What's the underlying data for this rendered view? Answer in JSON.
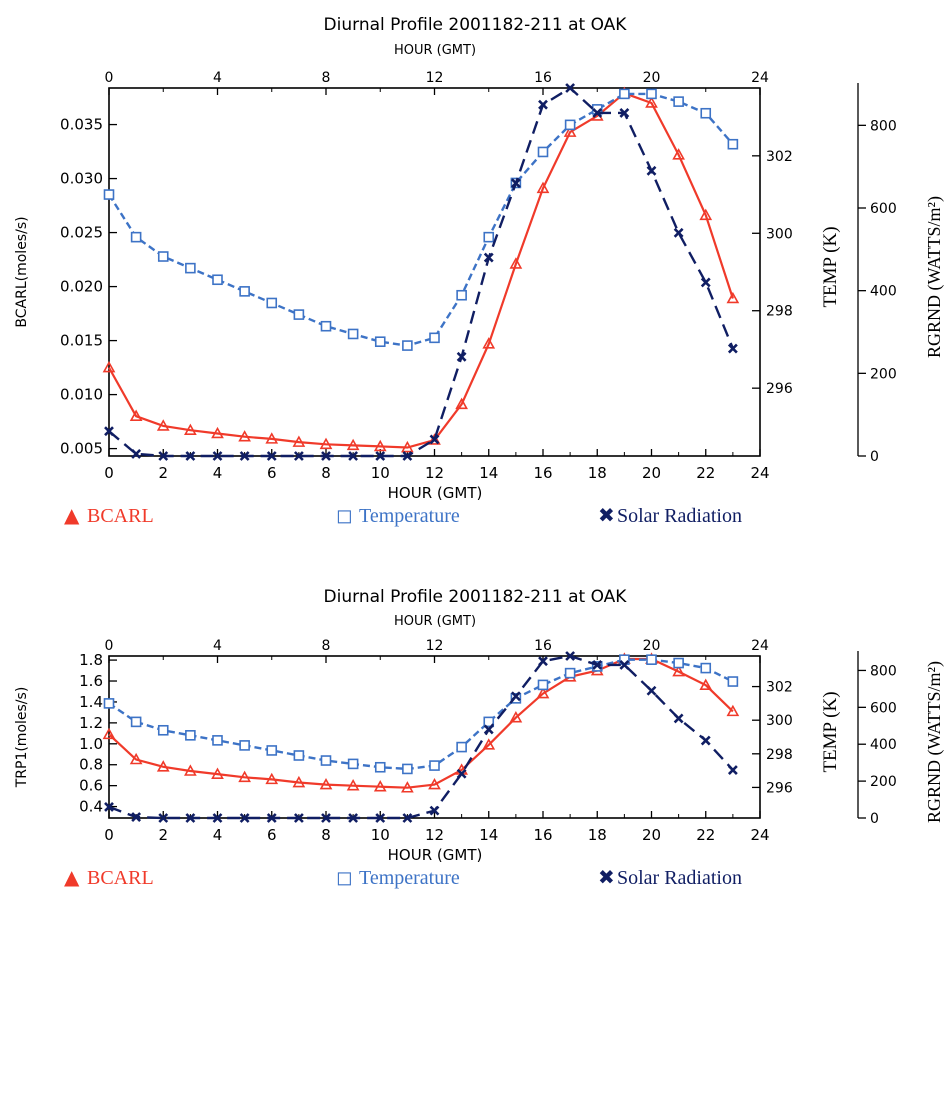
{
  "colors": {
    "bcarl": "#f03a2a",
    "temperature": "#3d73c6",
    "solar": "#101e63",
    "axis": "#000000"
  },
  "chart_data": [
    {
      "type": "line",
      "title": "Diurnal Profile 2001182-211 at OAK",
      "xlabel": "HOUR (GMT)",
      "top_xlabel": "HOUR (GMT)",
      "ylabel": "BCARL(moles/s)",
      "y2label": "TEMP (K)",
      "y3label": "RGRND (WATTS/m²)",
      "xlim": [
        0,
        24
      ],
      "ylim": [
        0.0045,
        0.0382
      ],
      "y2lim": [
        294.3,
        303.7
      ],
      "y3lim": [
        0,
        900
      ],
      "xticks_bottom": [
        "0",
        "2",
        "4",
        "6",
        "8",
        "10",
        "12",
        "14",
        "16",
        "18",
        "20",
        "22",
        "24"
      ],
      "xticks_top": [
        "0",
        "4",
        "8",
        "12",
        "16",
        "20",
        "24"
      ],
      "yticks": [
        "0.005",
        "0.010",
        "0.015",
        "0.020",
        "0.025",
        "0.030",
        "0.035"
      ],
      "y2ticks": [
        "296",
        "298",
        "300",
        "302"
      ],
      "y3ticks": [
        "0",
        "200",
        "400",
        "600",
        "800"
      ],
      "legend": [
        {
          "symbol": "▲",
          "label": "BCARL",
          "key": "bcarl"
        },
        {
          "symbol": "◻",
          "label": "Temperature",
          "key": "temperature"
        },
        {
          "symbol": "✖",
          "label": "Solar Radiation",
          "key": "solar"
        }
      ],
      "x": [
        0,
        1,
        2,
        3,
        4,
        5,
        6,
        7,
        8,
        9,
        10,
        11,
        12,
        13,
        14,
        15,
        16,
        17,
        18,
        19,
        20,
        21,
        22,
        23
      ],
      "series": [
        {
          "name": "BCARL",
          "axis": "left",
          "key": "bcarl",
          "values": [
            0.0125,
            0.008,
            0.0071,
            0.0067,
            0.0064,
            0.0061,
            0.0059,
            0.0056,
            0.0054,
            0.0053,
            0.0052,
            0.0051,
            0.0058,
            0.0091,
            0.0147,
            0.0221,
            0.0291,
            0.0343,
            0.0358,
            0.0379,
            0.037,
            0.0322,
            0.0266,
            0.0189
          ]
        },
        {
          "name": "Temperature",
          "axis": "right",
          "key": "temperature",
          "values": [
            301.0,
            299.9,
            299.4,
            299.1,
            298.8,
            298.5,
            298.2,
            297.9,
            297.6,
            297.4,
            297.2,
            297.1,
            297.3,
            298.4,
            299.9,
            301.3,
            302.1,
            302.8,
            303.2,
            303.6,
            303.6,
            303.4,
            303.1,
            302.3
          ]
        },
        {
          "name": "Solar Radiation",
          "axis": "radiation",
          "key": "solar",
          "values": [
            60,
            5,
            0,
            0,
            0,
            0,
            0,
            0,
            0,
            0,
            0,
            0,
            40,
            240,
            480,
            660,
            850,
            900,
            830,
            830,
            690,
            540,
            420,
            260
          ]
        }
      ]
    },
    {
      "type": "line",
      "title": "Diurnal Profile 2001182-211 at OAK",
      "xlabel": "HOUR (GMT)",
      "top_xlabel": "HOUR (GMT)",
      "ylabel": "TRP1(moles/s)",
      "y2label": "TEMP (K)",
      "y3label": "RGRND (WATTS/m²)",
      "xlim": [
        0,
        24
      ],
      "ylim": [
        0.31,
        1.82
      ],
      "y2lim": [
        294.3,
        303.7
      ],
      "y3lim": [
        0,
        900
      ],
      "xticks_bottom": [
        "0",
        "2",
        "4",
        "6",
        "8",
        "10",
        "12",
        "14",
        "16",
        "18",
        "20",
        "22",
        "24"
      ],
      "xticks_top": [
        "0",
        "4",
        "8",
        "12",
        "16",
        "20",
        "24"
      ],
      "yticks": [
        "0.4",
        "0.6",
        "0.8",
        "1.0",
        "1.2",
        "1.4",
        "1.6",
        "1.8"
      ],
      "y2ticks": [
        "296",
        "298",
        "300",
        "302"
      ],
      "y3ticks": [
        "0",
        "200",
        "400",
        "600",
        "800"
      ],
      "legend": [
        {
          "symbol": "▲",
          "label": "BCARL",
          "key": "bcarl"
        },
        {
          "symbol": "◻",
          "label": "Temperature",
          "key": "temperature"
        },
        {
          "symbol": "✖",
          "label": "Solar Radiation",
          "key": "solar"
        }
      ],
      "x": [
        0,
        1,
        2,
        3,
        4,
        5,
        6,
        7,
        8,
        9,
        10,
        11,
        12,
        13,
        14,
        15,
        16,
        17,
        18,
        19,
        20,
        21,
        22,
        23
      ],
      "series": [
        {
          "name": "BCARL",
          "axis": "left",
          "key": "bcarl",
          "values": [
            1.09,
            0.85,
            0.78,
            0.74,
            0.71,
            0.68,
            0.66,
            0.63,
            0.61,
            0.6,
            0.59,
            0.58,
            0.61,
            0.75,
            0.99,
            1.25,
            1.48,
            1.64,
            1.7,
            1.81,
            1.81,
            1.69,
            1.56,
            1.31
          ]
        },
        {
          "name": "Temperature",
          "axis": "right",
          "key": "temperature",
          "values": [
            301.0,
            299.9,
            299.4,
            299.1,
            298.8,
            298.5,
            298.2,
            297.9,
            297.6,
            297.4,
            297.2,
            297.1,
            297.3,
            298.4,
            299.9,
            301.3,
            302.1,
            302.8,
            303.2,
            303.6,
            303.6,
            303.4,
            303.1,
            302.3
          ]
        },
        {
          "name": "Solar Radiation",
          "axis": "radiation",
          "key": "solar",
          "values": [
            60,
            5,
            0,
            0,
            0,
            0,
            0,
            0,
            0,
            0,
            0,
            0,
            40,
            240,
            480,
            660,
            850,
            900,
            830,
            830,
            690,
            540,
            420,
            260
          ]
        }
      ]
    }
  ]
}
